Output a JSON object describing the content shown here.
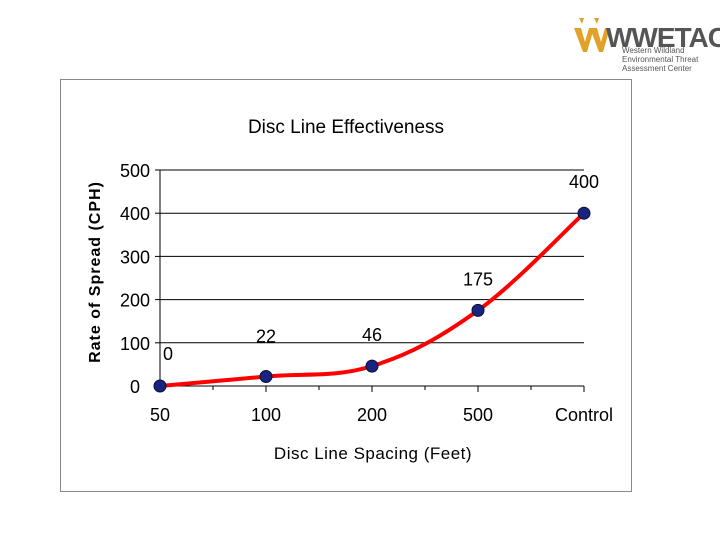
{
  "logo": {
    "name": "WWETAC",
    "lines": [
      "Western Wildland",
      "Environmental Threat",
      "Assessment Center"
    ]
  },
  "chart_data": {
    "type": "line",
    "title": "Disc Line Effectiveness",
    "xlabel": "Disc Line Spacing (Feet)",
    "ylabel": "Rate of Spread (CPH)",
    "categories": [
      "50",
      "100",
      "200",
      "500",
      "Control"
    ],
    "series": [
      {
        "name": "Rate of Spread",
        "values": [
          0,
          22,
          46,
          175,
          400
        ]
      }
    ],
    "data_labels": [
      "0",
      "22",
      "46",
      "175",
      "400"
    ],
    "yticks": [
      0,
      100,
      200,
      300,
      400,
      500
    ],
    "ylim": [
      0,
      500
    ],
    "grid": true,
    "line_color": "#ff0000",
    "marker_color": "#1a237e"
  }
}
